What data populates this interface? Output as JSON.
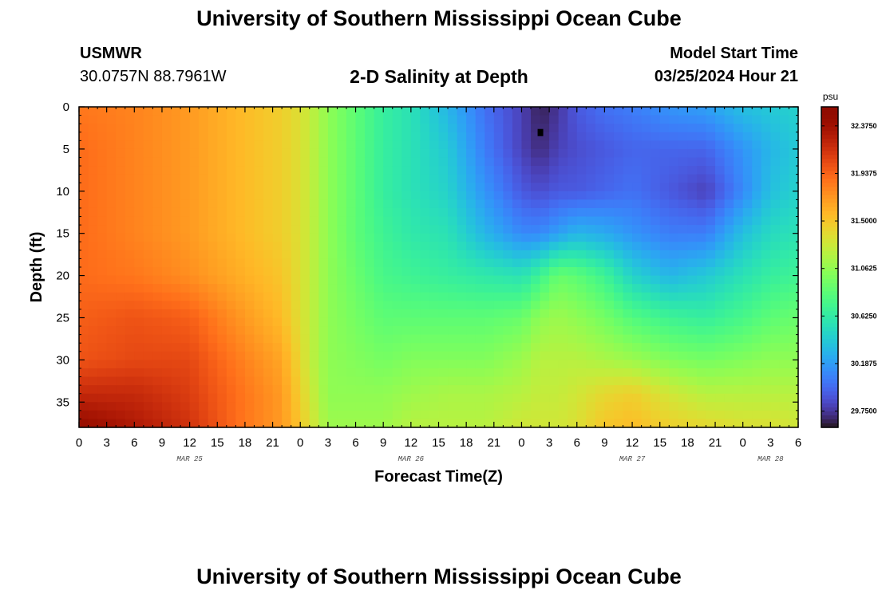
{
  "header": {
    "title": "University of Southern Mississippi Ocean Cube",
    "station": "USMWR",
    "coordinates": "30.0757N  88.7961W",
    "subtitle": "2-D Salinity at Depth",
    "model_start_label": "Model Start Time",
    "model_start_value": "03/25/2024 Hour 21"
  },
  "footer": {
    "title": "University of Southern Mississippi Ocean Cube"
  },
  "chart_data": {
    "type": "heatmap",
    "title": "2-D Salinity at Depth",
    "xlabel": "Forecast Time(Z)",
    "ylabel": "Depth (ft)",
    "x_tick_labels": [
      "0",
      "3",
      "6",
      "9",
      "12",
      "15",
      "18",
      "21",
      "0",
      "3",
      "6",
      "9",
      "12",
      "15",
      "18",
      "21",
      "0",
      "3",
      "6",
      "9",
      "12",
      "15",
      "18",
      "21",
      "0",
      "3",
      "6"
    ],
    "x_range_hours": [
      0,
      78
    ],
    "date_labels": [
      {
        "label": "MAR 25",
        "hour": 12
      },
      {
        "label": "MAR 26",
        "hour": 36
      },
      {
        "label": "MAR 27",
        "hour": 60
      },
      {
        "label": "MAR 28",
        "hour": 75
      }
    ],
    "y_ticks": [
      0,
      5,
      10,
      15,
      20,
      25,
      30,
      35
    ],
    "y_tick_labels": [
      "0",
      "5",
      "10",
      "15",
      "20",
      "25",
      "30",
      "35"
    ],
    "y_range_ft": [
      0,
      38
    ],
    "y_inverted": true,
    "colorbar": {
      "unit": "psu",
      "min": 29.6,
      "max": 32.55,
      "tick_values": [
        32.375,
        31.9375,
        31.5,
        31.0625,
        30.625,
        30.1875,
        29.75
      ],
      "tick_labels": [
        "32.3750",
        "31.9375",
        "31.5000",
        "31.0625",
        "30.6250",
        "30.1875",
        "29.7500"
      ],
      "colormap": "turbo"
    },
    "salinity_grid": {
      "hours": [
        0,
        6,
        12,
        18,
        22,
        24,
        25,
        27,
        30,
        33,
        36,
        40,
        44,
        48,
        50,
        52,
        54,
        57,
        60,
        64,
        68,
        72,
        75,
        78
      ],
      "depths_ft": [
        0,
        5,
        10,
        15,
        20,
        25,
        30,
        34,
        38
      ],
      "values_psu": [
        [
          31.85,
          31.9,
          31.9,
          31.9,
          31.9,
          31.95,
          32.0,
          32.2,
          32.45
        ],
        [
          31.8,
          31.8,
          31.8,
          31.8,
          31.85,
          32.0,
          32.05,
          32.2,
          32.3
        ],
        [
          31.7,
          31.7,
          31.7,
          31.7,
          31.75,
          31.95,
          32.05,
          32.1,
          32.15
        ],
        [
          31.55,
          31.55,
          31.55,
          31.55,
          31.6,
          31.7,
          31.8,
          31.85,
          31.85
        ],
        [
          31.45,
          31.45,
          31.45,
          31.45,
          31.5,
          31.55,
          31.65,
          31.7,
          31.7
        ],
        [
          31.35,
          31.35,
          31.35,
          31.35,
          31.35,
          31.35,
          31.4,
          31.45,
          31.5
        ],
        [
          31.25,
          31.25,
          31.25,
          31.25,
          31.25,
          31.25,
          31.25,
          31.3,
          31.35
        ],
        [
          31.05,
          31.05,
          31.05,
          31.05,
          31.05,
          31.05,
          31.05,
          31.05,
          31.1
        ],
        [
          30.85,
          30.85,
          30.85,
          30.85,
          30.9,
          30.95,
          31.0,
          31.05,
          31.1
        ],
        [
          30.65,
          30.65,
          30.65,
          30.7,
          30.75,
          30.85,
          30.95,
          31.05,
          31.1
        ],
        [
          30.55,
          30.55,
          30.55,
          30.6,
          30.7,
          30.85,
          31.0,
          31.1,
          31.2
        ],
        [
          30.3,
          30.4,
          30.45,
          30.55,
          30.65,
          30.85,
          31.0,
          31.15,
          31.2
        ],
        [
          30.0,
          30.05,
          30.15,
          30.3,
          30.6,
          30.85,
          31.0,
          31.15,
          31.2
        ],
        [
          29.8,
          29.8,
          29.9,
          30.1,
          30.55,
          30.9,
          31.1,
          31.2,
          31.3
        ],
        [
          29.65,
          29.7,
          29.85,
          30.1,
          30.7,
          31.05,
          31.2,
          31.25,
          31.3
        ],
        [
          29.75,
          29.8,
          29.9,
          30.2,
          30.9,
          31.1,
          31.2,
          31.25,
          31.3
        ],
        [
          29.9,
          29.85,
          29.9,
          30.3,
          30.85,
          31.05,
          31.2,
          31.3,
          31.35
        ],
        [
          30.0,
          29.9,
          29.95,
          30.25,
          30.7,
          30.95,
          31.15,
          31.4,
          31.5
        ],
        [
          30.05,
          29.95,
          30.0,
          30.15,
          30.45,
          30.8,
          31.1,
          31.45,
          31.55
        ],
        [
          30.15,
          29.95,
          29.9,
          30.05,
          30.3,
          30.7,
          31.0,
          31.3,
          31.45
        ],
        [
          30.2,
          29.95,
          29.8,
          30.05,
          30.4,
          30.65,
          30.95,
          31.2,
          31.4
        ],
        [
          30.35,
          30.15,
          30.1,
          30.35,
          30.55,
          30.75,
          31.0,
          31.2,
          31.35
        ],
        [
          30.4,
          30.3,
          30.35,
          30.5,
          30.65,
          30.85,
          31.05,
          31.2,
          31.35
        ],
        [
          30.45,
          30.4,
          30.45,
          30.55,
          30.7,
          30.9,
          31.05,
          31.2,
          31.3
        ]
      ]
    },
    "marker": {
      "hour": 50,
      "depth_ft": 3
    }
  }
}
